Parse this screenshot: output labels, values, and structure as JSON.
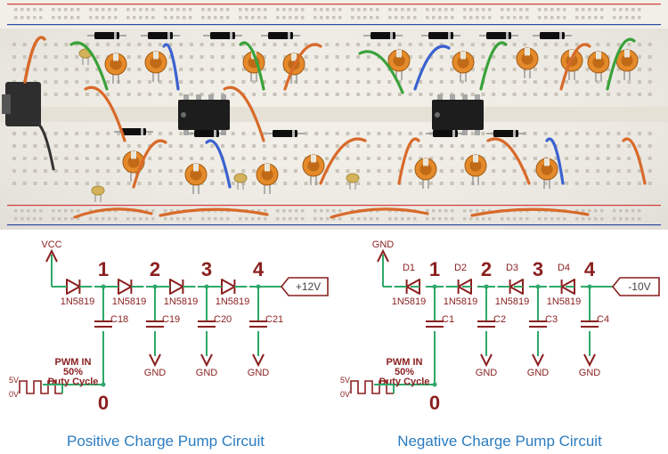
{
  "photo": {
    "background": "#f2efe8",
    "hole": "#c9c4b8",
    "busPlus": "#d23a3a",
    "busMinus": "#2e4aa0",
    "jumper_colors": [
      "#d86a2a",
      "#3aa23a",
      "#3a62d0",
      "#c7b84a",
      "#9c5a2a",
      "#8d8d8d"
    ],
    "ic_body": "#1d1d1d",
    "ic_notch": "#6a6a6a",
    "cap_body": "#e58a2a",
    "cap_top": "#c06a18",
    "cap_band": "#e9e6da",
    "diode_body": "#0e0e0e",
    "diode_band": "#b6b6b6",
    "small_cap": "#d4b25a"
  },
  "schematic": {
    "wire_color": "#2fa86a",
    "symbol_color": "#8a1f1f",
    "node_ids": [
      "1",
      "2",
      "3",
      "4",
      "0"
    ],
    "pwm_label": "PWM IN",
    "duty_label_1": "50%",
    "duty_label_2": "Duty Cycle",
    "pwm_hi": "5V",
    "pwm_lo": "0V",
    "diode_part": "1N5819",
    "node_font": 22,
    "part_font": 14.5,
    "label_font": 11,
    "caption_font": 17
  },
  "positive": {
    "rail_top": "VCC",
    "out_label": "+12V",
    "diodes": [
      "1N5819",
      "1N5819",
      "1N5819",
      "1N5819"
    ],
    "caps": [
      "C18",
      "C19",
      "C20",
      "C21"
    ],
    "cap_rail": "GND",
    "caption": "Positive Charge Pump Circuit",
    "caption_color": "#2b7cc0"
  },
  "negative": {
    "rail_top": "GND",
    "out_label": "-10V",
    "diodes_ref": [
      "D1",
      "D2",
      "D3",
      "D4"
    ],
    "diodes": [
      "1N5819",
      "1N5819",
      "1N5819",
      "1N5819"
    ],
    "caps": [
      "C1",
      "C2",
      "C3",
      "C4"
    ],
    "cap_rail": "GND",
    "caption": "Negative Charge Pump Circuit",
    "caption_color": "#2b7cc0"
  },
  "layout": {
    "left_width": 372,
    "right_width": 378,
    "schem_h": 252
  }
}
